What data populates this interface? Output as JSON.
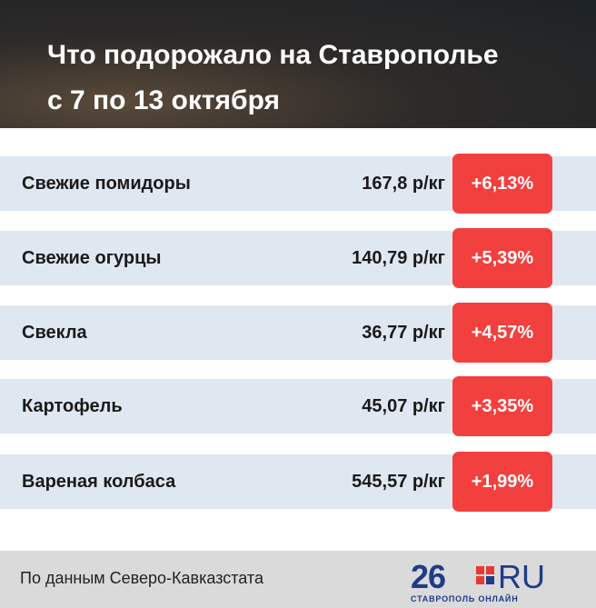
{
  "header": {
    "title": "Что подорожало на Ставрополье",
    "subtitle": "с 7 по 13 октября"
  },
  "table": {
    "rows": [
      [
        "Свежие помидоры",
        "167,8 р/кг",
        "+6,13%"
      ],
      [
        "Свежие огурцы",
        "140,79 р/кг",
        "+5,39%"
      ],
      [
        "Свекла",
        "36,77 р/кг",
        "+4,57%"
      ],
      [
        "Картофель",
        "45,07 р/кг",
        "+3,35%"
      ],
      [
        "Вареная колбаса",
        "545,57 р/кг",
        "+1,99%"
      ]
    ]
  },
  "footer": {
    "source": "По данным Северо-Кавказстата",
    "logo": {
      "number": "26",
      "domain": "RU",
      "tagline": "СТАВРОПОЛЬ ОНЛАЙН"
    }
  }
}
